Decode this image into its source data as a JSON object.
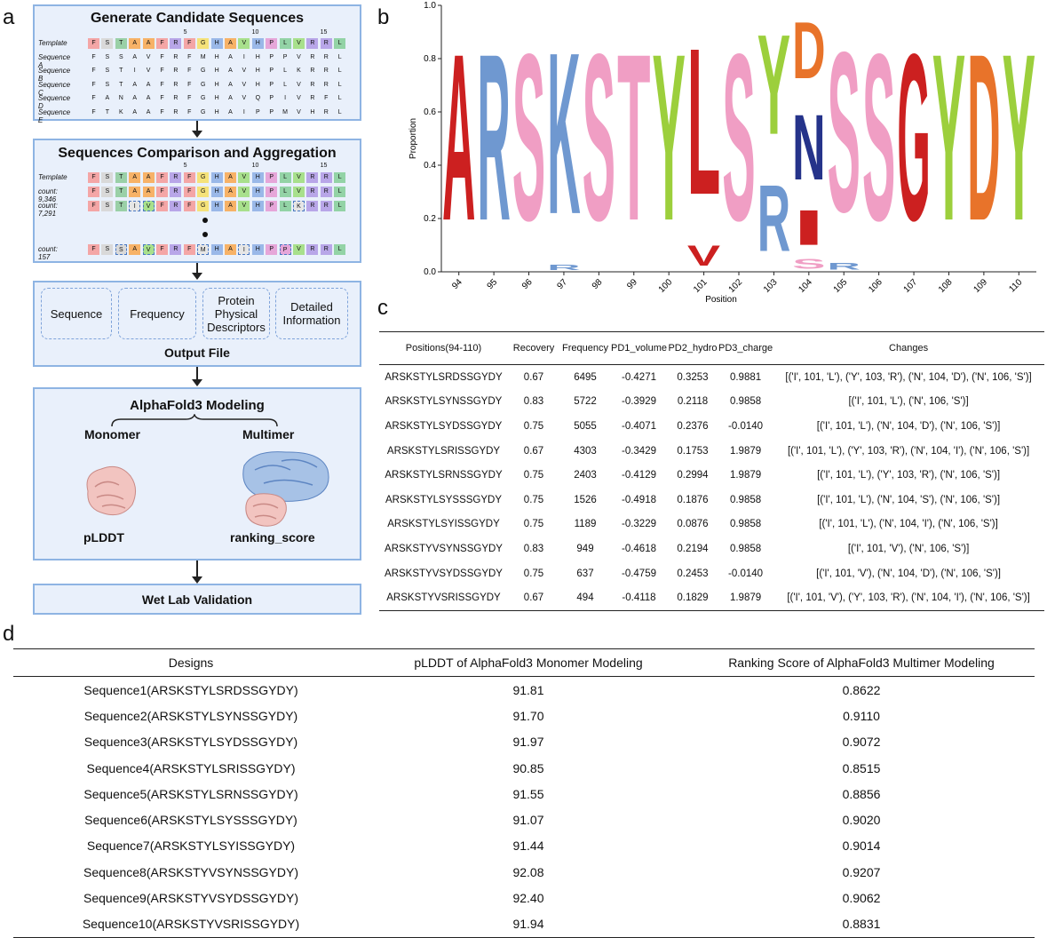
{
  "panels": {
    "a": "a",
    "b": "b",
    "c": "c",
    "d": "d"
  },
  "flow": {
    "box1_title": "Generate Candidate Sequences",
    "box2_title": "Sequences Comparison and Aggregation",
    "pos_markers": [
      "5",
      "10",
      "15"
    ],
    "template_label": "Template",
    "template_seq": "FSTAAFRFGHAVHPLVRRL",
    "candidates": [
      {
        "label": "Sequence A",
        "seq": "FSSAVFRFMHAIHPPVRRL"
      },
      {
        "label": "Sequence B",
        "seq": "FSTIVFRFGHAVHPLKRRL"
      },
      {
        "label": "Sequence C",
        "seq": "FSTAAFRFGHAVHPLVRRL"
      },
      {
        "label": "Sequence D",
        "seq": "FANAAFRFGHAVQPIVRFL"
      },
      {
        "label": "Sequence E",
        "seq": "FTKAAFRFGHAIPPMVHRL"
      }
    ],
    "aggregated": [
      {
        "label": "count: 9,346",
        "seq": "FSTAAFRFGHAVHPLVRRL"
      },
      {
        "label": "count: 7,291",
        "seq": "FSTIVFRFGHAVHPLKRRL"
      },
      {
        "label": "count: 157",
        "seq": "FSSAVFRFMHAIHPPVRRL"
      }
    ],
    "output_items": [
      "Sequence",
      "Frequency",
      "Protein Physical Descriptors",
      "Detailed Information"
    ],
    "output_label": "Output File",
    "af3_title": "AlphaFold3 Modeling",
    "monomer": "Monomer",
    "multimer": "Multimer",
    "plddt": "pLDDT",
    "ranking": "ranking_score",
    "wetlab": "Wet Lab Validation"
  },
  "colors": {
    "F": "#f4a6a6",
    "S": "#d9d9d9",
    "T": "#9ad0a7",
    "A": "#f7b267",
    "R": "#b8a6e8",
    "G": "#f5e27a",
    "H": "#9ab8e8",
    "V": "#a8e08c",
    "P": "#e6a6d9",
    "L": "#93d3a6",
    "box_border": "#8eb4e3",
    "box_fill": "#e9f0fb"
  },
  "logo_chart": {
    "type": "sequence-logo",
    "ylabel": "Proportion",
    "xlabel": "Position",
    "ylim": [
      0,
      1.0
    ],
    "yticks": [
      "0.0",
      "0.2",
      "0.4",
      "0.6",
      "0.8",
      "1.0"
    ],
    "positions": [
      94,
      95,
      96,
      97,
      98,
      99,
      100,
      101,
      102,
      103,
      104,
      105,
      106,
      107,
      108,
      109,
      110
    ],
    "stacks": [
      [
        {
          "aa": "A",
          "p": 1.0
        }
      ],
      [
        {
          "aa": "R",
          "p": 1.0
        }
      ],
      [
        {
          "aa": "S",
          "p": 1.0
        }
      ],
      [
        {
          "aa": "R",
          "p": 0.03
        },
        {
          "aa": "K",
          "p": 0.97
        }
      ],
      [
        {
          "aa": "S",
          "p": 1.0
        }
      ],
      [
        {
          "aa": "T",
          "p": 1.0
        }
      ],
      [
        {
          "aa": "Y",
          "p": 1.0
        }
      ],
      [
        {
          "aa": "V",
          "p": 0.12
        },
        {
          "aa": "L",
          "p": 0.88
        }
      ],
      [
        {
          "aa": "S",
          "p": 1.0
        }
      ],
      [
        {
          "aa": "R",
          "p": 0.4
        },
        {
          "aa": "Y",
          "p": 0.6
        }
      ],
      [
        {
          "aa": "S",
          "p": 0.06
        },
        {
          "aa": "I",
          "p": 0.21
        },
        {
          "aa": "N",
          "p": 0.39
        },
        {
          "aa": "D",
          "p": 0.34
        }
      ],
      [
        {
          "aa": "R",
          "p": 0.04
        },
        {
          "aa": "S",
          "p": 0.96
        }
      ],
      [
        {
          "aa": "S",
          "p": 1.0
        }
      ],
      [
        {
          "aa": "G",
          "p": 1.0
        }
      ],
      [
        {
          "aa": "Y",
          "p": 1.0
        }
      ],
      [
        {
          "aa": "D",
          "p": 1.0
        }
      ],
      [
        {
          "aa": "Y",
          "p": 1.0
        }
      ]
    ],
    "aa_colors": {
      "A": "#cc2020",
      "R": "#6f98d0",
      "K": "#6f98d0",
      "S": "#f09ec4",
      "T": "#f09ec4",
      "Y": "#9ccf3c",
      "L": "#cc2020",
      "V": "#cc2020",
      "I": "#cc2020",
      "N": "#25338a",
      "D": "#e8732a",
      "G": "#cc2020"
    }
  },
  "table_c": {
    "headers": [
      "Positions(94-110)",
      "Recovery",
      "Frequency",
      "PD1_volume",
      "PD2_hydro",
      "PD3_charge",
      "Changes"
    ],
    "rows": [
      [
        "ARSKSTYLSRDSSGYDY",
        "0.67",
        "6495",
        "-0.4271",
        "0.3253",
        "0.9881",
        "[('I', 101, 'L'), ('Y', 103, 'R'), ('N', 104, 'D'), ('N', 106, 'S')]"
      ],
      [
        "ARSKSTYLSYNSSGYDY",
        "0.83",
        "5722",
        "-0.3929",
        "0.2118",
        "0.9858",
        "[('I', 101, 'L'), ('N', 106, 'S')]"
      ],
      [
        "ARSKSTYLSYDSSGYDY",
        "0.75",
        "5055",
        "-0.4071",
        "0.2376",
        "-0.0140",
        "[('I', 101, 'L'), ('N', 104, 'D'), ('N', 106, 'S')]"
      ],
      [
        "ARSKSTYLSRISSGYDY",
        "0.67",
        "4303",
        "-0.3429",
        "0.1753",
        "1.9879",
        "[('I', 101, 'L'), ('Y', 103, 'R'), ('N', 104, 'I'), ('N', 106, 'S')]"
      ],
      [
        "ARSKSTYLSRNSSGYDY",
        "0.75",
        "2403",
        "-0.4129",
        "0.2994",
        "1.9879",
        "[('I', 101, 'L'), ('Y', 103, 'R'), ('N', 106, 'S')]"
      ],
      [
        "ARSKSTYLSYSSSGYDY",
        "0.75",
        "1526",
        "-0.4918",
        "0.1876",
        "0.9858",
        "[('I', 101, 'L'), ('N', 104, 'S'), ('N', 106, 'S')]"
      ],
      [
        "ARSKSTYLSYISSGYDY",
        "0.75",
        "1189",
        "-0.3229",
        "0.0876",
        "0.9858",
        "[('I', 101, 'L'), ('N', 104, 'I'), ('N', 106, 'S')]"
      ],
      [
        "ARSKSTYVSYNSSGYDY",
        "0.83",
        "949",
        "-0.4618",
        "0.2194",
        "0.9858",
        "[('I', 101, 'V'), ('N', 106, 'S')]"
      ],
      [
        "ARSKSTYVSYDSSGYDY",
        "0.75",
        "637",
        "-0.4759",
        "0.2453",
        "-0.0140",
        "[('I', 101, 'V'), ('N', 104, 'D'), ('N', 106, 'S')]"
      ],
      [
        "ARSKSTYVSRISSGYDY",
        "0.67",
        "494",
        "-0.4118",
        "0.1829",
        "1.9879",
        "[('I', 101, 'V'), ('Y', 103, 'R'), ('N', 104, 'I'), ('N', 106, 'S')]"
      ]
    ]
  },
  "table_d": {
    "headers": [
      "Designs",
      "pLDDT of AlphaFold3 Monomer Modeling",
      "Ranking Score of AlphaFold3 Multimer Modeling"
    ],
    "rows": [
      [
        "Sequence1(ARSKSTYLSRDSSGYDY)",
        "91.81",
        "0.8622"
      ],
      [
        "Sequence2(ARSKSTYLSYNSSGYDY)",
        "91.70",
        "0.9110"
      ],
      [
        "Sequence3(ARSKSTYLSYDSSGYDY)",
        "91.97",
        "0.9072"
      ],
      [
        "Sequence4(ARSKSTYLSRISSGYDY)",
        "90.85",
        "0.8515"
      ],
      [
        "Sequence5(ARSKSTYLSRNSSGYDY)",
        "91.55",
        "0.8856"
      ],
      [
        "Sequence6(ARSKSTYLSYSSSGYDY)",
        "91.07",
        "0.9020"
      ],
      [
        "Sequence7(ARSKSTYLSYISSGYDY)",
        "91.44",
        "0.9014"
      ],
      [
        "Sequence8(ARSKSTYVSYNSSGYDY)",
        "92.08",
        "0.9207"
      ],
      [
        "Sequence9(ARSKSTYVSYDSSGYDY)",
        "92.40",
        "0.9062"
      ],
      [
        "Sequence10(ARSKSTYVSRISSGYDY)",
        "91.94",
        "0.8831"
      ]
    ]
  }
}
